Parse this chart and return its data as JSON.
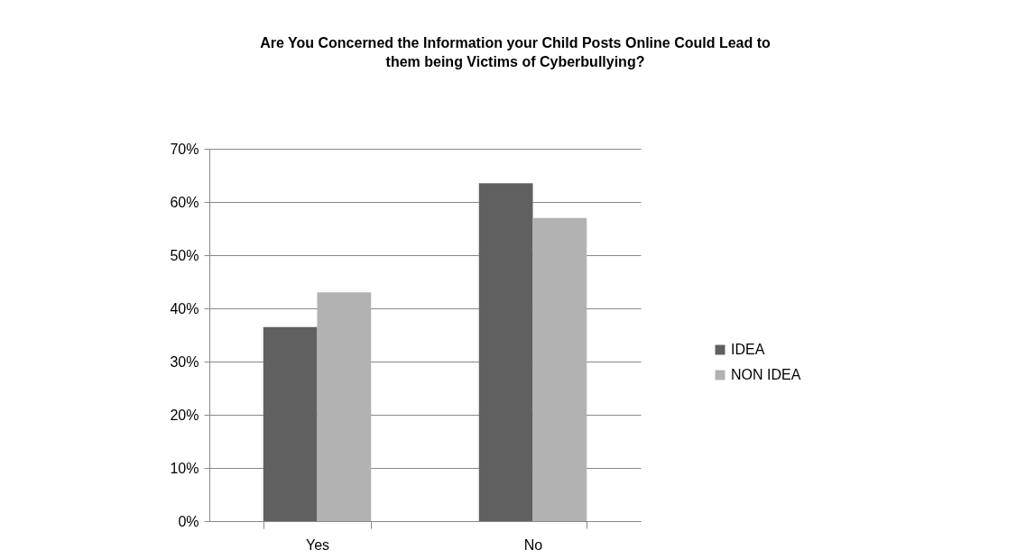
{
  "chart_data": {
    "type": "bar",
    "title": "Are You Concerned the Information your Child Posts Online Could Lead to them being Victims of Cyberbullying?",
    "categories": [
      "Yes",
      "No"
    ],
    "series": [
      {
        "name": "IDEA",
        "color": "#606060",
        "values": [
          36.5,
          63.5
        ]
      },
      {
        "name": "NON IDEA",
        "color": "#b2b2b2",
        "values": [
          43,
          57
        ]
      }
    ],
    "ylim": [
      0,
      70
    ],
    "yticks": [
      {
        "value": 0,
        "label": "0%"
      },
      {
        "value": 10,
        "label": "10%"
      },
      {
        "value": 20,
        "label": "20%"
      },
      {
        "value": 30,
        "label": "30%"
      },
      {
        "value": 40,
        "label": "40%"
      },
      {
        "value": 50,
        "label": "50%"
      },
      {
        "value": 60,
        "label": "60%"
      },
      {
        "value": 70,
        "label": "70%"
      }
    ],
    "grid": "y",
    "legend": "right"
  }
}
